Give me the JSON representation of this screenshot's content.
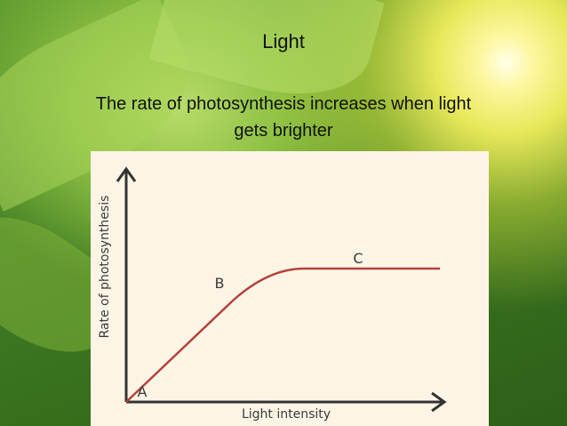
{
  "slide": {
    "title": "Light",
    "body": [
      "The rate of photosynthesis increases when light",
      "gets brighter"
    ]
  },
  "diagram": {
    "y_axis_label": "Rate of photosynthesis",
    "x_axis_label": "Light intensity",
    "points": [
      {
        "label": "A"
      },
      {
        "label": "B"
      },
      {
        "label": "C"
      }
    ]
  }
}
